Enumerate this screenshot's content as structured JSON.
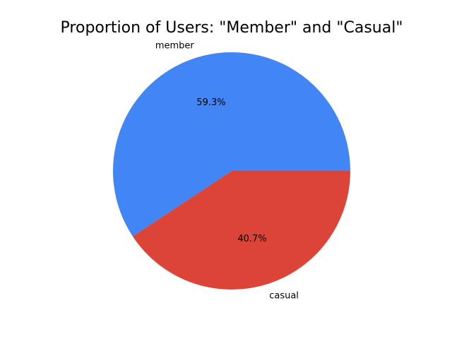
{
  "chart_data": {
    "type": "pie",
    "title": "Proportion of Users: \"Member\" and \"Casual\"",
    "start_angle": 0,
    "direction": "counterclockwise",
    "slices": [
      {
        "label": "member",
        "value": 59.3,
        "pct_label": "59.3%",
        "color": "#4285f4"
      },
      {
        "label": "casual",
        "value": 40.7,
        "pct_label": "40.7%",
        "color": "#db4437"
      }
    ]
  }
}
